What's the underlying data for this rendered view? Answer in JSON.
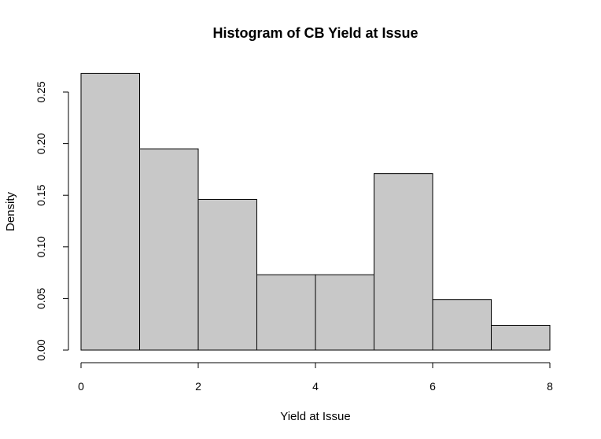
{
  "chart_data": {
    "type": "bar",
    "title": "Histogram of CB Yield at Issue",
    "xlabel": "Yield at Issue",
    "ylabel": "Density",
    "bin_edges": [
      0,
      1,
      2,
      3,
      4,
      5,
      6,
      7,
      8
    ],
    "values": [
      0.268,
      0.195,
      0.146,
      0.073,
      0.073,
      0.171,
      0.049,
      0.024
    ],
    "xlim": [
      0,
      8
    ],
    "ylim": [
      0,
      0.25
    ],
    "x_ticks": [
      0,
      2,
      4,
      6,
      8
    ],
    "x_tick_labels": [
      "0",
      "2",
      "4",
      "6",
      "8"
    ],
    "y_ticks": [
      0,
      0.05,
      0.1,
      0.15,
      0.2,
      0.25
    ],
    "y_tick_labels": [
      "0.00",
      "0.05",
      "0.10",
      "0.15",
      "0.20",
      "0.25"
    ],
    "bar_color": "#c8c8c8",
    "grid": false,
    "legend": "none"
  }
}
